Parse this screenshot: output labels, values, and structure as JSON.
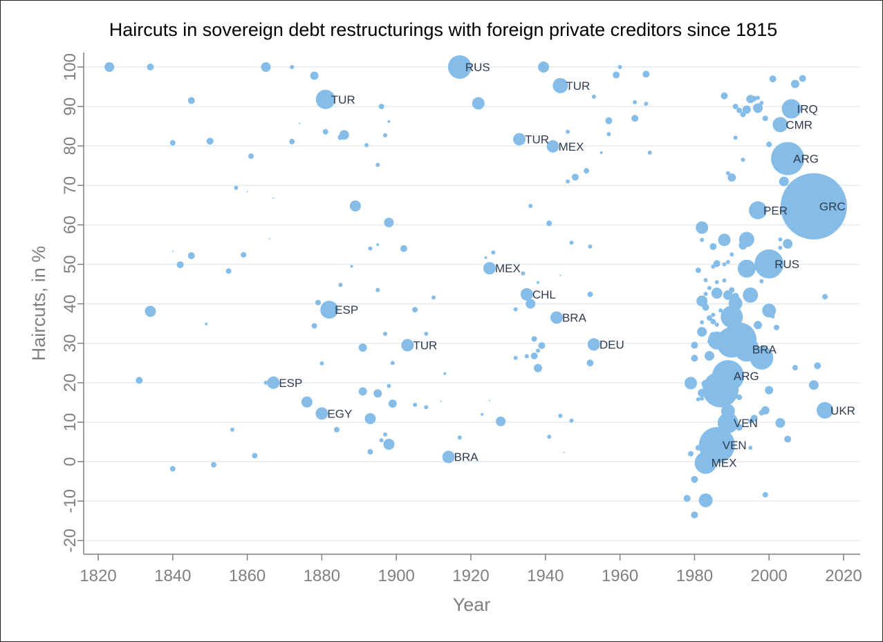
{
  "chart_data": {
    "type": "scatter",
    "title": "Haircuts in sovereign debt restructurings with foreign private creditors since 1815",
    "xlabel": "Year",
    "ylabel": "Haircuts, in %",
    "xlim": [
      1817,
      2022
    ],
    "ylim": [
      -24,
      105
    ],
    "xticks": [
      1820,
      1840,
      1860,
      1880,
      1900,
      1920,
      1940,
      1960,
      1980,
      2000,
      2020
    ],
    "yticks": [
      -20,
      -10,
      0,
      10,
      20,
      30,
      40,
      50,
      60,
      70,
      80,
      90,
      100
    ],
    "grid": true,
    "point_color": "#85bde8",
    "size_encoding": "bubble radius",
    "points": [
      {
        "x": 1823,
        "y": 100,
        "r": 7
      },
      {
        "x": 1834,
        "y": 100,
        "r": 5
      },
      {
        "x": 1865,
        "y": 100,
        "r": 7
      },
      {
        "x": 1872,
        "y": 100,
        "r": 3
      },
      {
        "x": 1878,
        "y": 97.8,
        "r": 6
      },
      {
        "x": 1917,
        "y": 100,
        "r": 17,
        "label": "RUS"
      },
      {
        "x": 1939.5,
        "y": 100,
        "r": 8
      },
      {
        "x": 1960,
        "y": 100,
        "r": 3
      },
      {
        "x": 1959,
        "y": 98,
        "r": 5
      },
      {
        "x": 1967,
        "y": 98.2,
        "r": 5
      },
      {
        "x": 1944,
        "y": 95.3,
        "r": 11,
        "label": "TUR"
      },
      {
        "x": 1953,
        "y": 92.5,
        "r": 3
      },
      {
        "x": 1845,
        "y": 91.5,
        "r": 5
      },
      {
        "x": 1881,
        "y": 91.8,
        "r": 14,
        "label": "TUR"
      },
      {
        "x": 1922,
        "y": 90.8,
        "r": 9
      },
      {
        "x": 1896,
        "y": 90,
        "r": 4
      },
      {
        "x": 1964,
        "y": 91.1,
        "r": 3
      },
      {
        "x": 1967,
        "y": 90.7,
        "r": 3
      },
      {
        "x": 1898,
        "y": 86.2,
        "r": 2
      },
      {
        "x": 1874,
        "y": 85.7,
        "r": 1
      },
      {
        "x": 1957,
        "y": 86.4,
        "r": 5
      },
      {
        "x": 1964,
        "y": 87,
        "r": 5
      },
      {
        "x": 1881,
        "y": 83.6,
        "r": 4
      },
      {
        "x": 1886,
        "y": 82.8,
        "r": 7
      },
      {
        "x": 1885,
        "y": 82.2,
        "r": 4
      },
      {
        "x": 1897,
        "y": 82.7,
        "r": 3
      },
      {
        "x": 1946,
        "y": 83.6,
        "r": 3
      },
      {
        "x": 1957,
        "y": 83,
        "r": 3
      },
      {
        "x": 1840,
        "y": 80.8,
        "r": 4
      },
      {
        "x": 1850,
        "y": 81.2,
        "r": 5
      },
      {
        "x": 1872,
        "y": 81.1,
        "r": 4
      },
      {
        "x": 1892,
        "y": 80.2,
        "r": 3
      },
      {
        "x": 1933,
        "y": 81.7,
        "r": 9,
        "label": "TUR"
      },
      {
        "x": 1942,
        "y": 79.9,
        "r": 9,
        "label": "MEX"
      },
      {
        "x": 1955,
        "y": 78.3,
        "r": 2
      },
      {
        "x": 1968,
        "y": 78.3,
        "r": 3
      },
      {
        "x": 1861,
        "y": 77.4,
        "r": 4
      },
      {
        "x": 1895,
        "y": 75.2,
        "r": 3
      },
      {
        "x": 1951,
        "y": 73.7,
        "r": 4
      },
      {
        "x": 1948,
        "y": 72.1,
        "r": 5
      },
      {
        "x": 1946,
        "y": 71,
        "r": 3
      },
      {
        "x": 1857,
        "y": 69.4,
        "r": 3
      },
      {
        "x": 1860,
        "y": 68.4,
        "r": 1
      },
      {
        "x": 1867,
        "y": 66.8,
        "r": 1
      },
      {
        "x": 1889,
        "y": 64.8,
        "r": 8
      },
      {
        "x": 1936,
        "y": 64.8,
        "r": 3
      },
      {
        "x": 1898,
        "y": 60.6,
        "r": 7
      },
      {
        "x": 1941,
        "y": 60.4,
        "r": 4
      },
      {
        "x": 1866,
        "y": 56.5,
        "r": 1
      },
      {
        "x": 1840,
        "y": 53.3,
        "r": 1
      },
      {
        "x": 1845,
        "y": 52.2,
        "r": 5
      },
      {
        "x": 1859,
        "y": 52.4,
        "r": 4
      },
      {
        "x": 1893,
        "y": 54,
        "r": 3
      },
      {
        "x": 1895,
        "y": 55,
        "r": 2
      },
      {
        "x": 1902,
        "y": 54,
        "r": 5
      },
      {
        "x": 1926,
        "y": 53,
        "r": 3
      },
      {
        "x": 1947,
        "y": 55.5,
        "r": 3
      },
      {
        "x": 1952,
        "y": 54.5,
        "r": 3
      },
      {
        "x": 1924,
        "y": 51.7,
        "r": 2
      },
      {
        "x": 1842,
        "y": 49.9,
        "r": 5
      },
      {
        "x": 1855,
        "y": 48.3,
        "r": 4
      },
      {
        "x": 1888,
        "y": 49.5,
        "r": 2
      },
      {
        "x": 1925,
        "y": 49,
        "r": 9,
        "label": "MEX"
      },
      {
        "x": 1934,
        "y": 47.7,
        "r": 3
      },
      {
        "x": 1944,
        "y": 47.2,
        "r": 1
      },
      {
        "x": 1885,
        "y": 44.8,
        "r": 3
      },
      {
        "x": 1895,
        "y": 43.5,
        "r": 3
      },
      {
        "x": 1938,
        "y": 45.4,
        "r": 2
      },
      {
        "x": 1910,
        "y": 41.6,
        "r": 3
      },
      {
        "x": 1935,
        "y": 42.4,
        "r": 9,
        "label": "CHL"
      },
      {
        "x": 1952,
        "y": 42.4,
        "r": 4
      },
      {
        "x": 1834,
        "y": 38.1,
        "r": 8
      },
      {
        "x": 1879,
        "y": 40.3,
        "r": 4
      },
      {
        "x": 1882,
        "y": 38.5,
        "r": 13,
        "label": "ESP"
      },
      {
        "x": 1905,
        "y": 38.5,
        "r": 4
      },
      {
        "x": 1932,
        "y": 38.6,
        "r": 3
      },
      {
        "x": 1936,
        "y": 40,
        "r": 7
      },
      {
        "x": 1943,
        "y": 36.5,
        "r": 9,
        "label": "BRA"
      },
      {
        "x": 1849,
        "y": 34.9,
        "r": 2
      },
      {
        "x": 1878,
        "y": 34.4,
        "r": 4
      },
      {
        "x": 1897,
        "y": 32.4,
        "r": 3
      },
      {
        "x": 1908,
        "y": 32.4,
        "r": 3
      },
      {
        "x": 1937,
        "y": 31.1,
        "r": 4
      },
      {
        "x": 1891,
        "y": 28.9,
        "r": 6
      },
      {
        "x": 1903,
        "y": 29.5,
        "r": 9,
        "label": "TUR"
      },
      {
        "x": 1939,
        "y": 29.4,
        "r": 5
      },
      {
        "x": 1938,
        "y": 28.1,
        "r": 3
      },
      {
        "x": 1932,
        "y": 26.3,
        "r": 3
      },
      {
        "x": 1935,
        "y": 26.7,
        "r": 3
      },
      {
        "x": 1937,
        "y": 26.8,
        "r": 5
      },
      {
        "x": 1953,
        "y": 29.7,
        "r": 9,
        "label": "DEU"
      },
      {
        "x": 1952,
        "y": 25,
        "r": 5
      },
      {
        "x": 1880,
        "y": 24.9,
        "r": 3
      },
      {
        "x": 1899,
        "y": 25,
        "r": 3
      },
      {
        "x": 1938,
        "y": 23.7,
        "r": 6
      },
      {
        "x": 1913,
        "y": 22.3,
        "r": 2
      },
      {
        "x": 1831,
        "y": 20.6,
        "r": 5
      },
      {
        "x": 1865,
        "y": 20,
        "r": 3
      },
      {
        "x": 1867,
        "y": 20,
        "r": 9,
        "label": "ESP"
      },
      {
        "x": 1898,
        "y": 19.2,
        "r": 3
      },
      {
        "x": 1891,
        "y": 17.8,
        "r": 6
      },
      {
        "x": 1895,
        "y": 17.3,
        "r": 6
      },
      {
        "x": 1876,
        "y": 15.1,
        "r": 8
      },
      {
        "x": 1899,
        "y": 14.7,
        "r": 6
      },
      {
        "x": 1905,
        "y": 14.4,
        "r": 3
      },
      {
        "x": 1908,
        "y": 13.8,
        "r": 3
      },
      {
        "x": 1912,
        "y": 15.3,
        "r": 1
      },
      {
        "x": 1925,
        "y": 15.5,
        "r": 1
      },
      {
        "x": 1880,
        "y": 12.2,
        "r": 9,
        "label": "EGY"
      },
      {
        "x": 1893,
        "y": 10.9,
        "r": 8
      },
      {
        "x": 1923,
        "y": 12,
        "r": 2
      },
      {
        "x": 1928,
        "y": 10.2,
        "r": 7
      },
      {
        "x": 1944,
        "y": 11.6,
        "r": 3
      },
      {
        "x": 1947,
        "y": 10.4,
        "r": 3
      },
      {
        "x": 1856,
        "y": 8.1,
        "r": 3
      },
      {
        "x": 1884,
        "y": 8.1,
        "r": 4
      },
      {
        "x": 1897,
        "y": 6.9,
        "r": 3
      },
      {
        "x": 1941,
        "y": 6.3,
        "r": 3
      },
      {
        "x": 1917,
        "y": 6.1,
        "r": 3
      },
      {
        "x": 1896,
        "y": 5.4,
        "r": 3
      },
      {
        "x": 1898,
        "y": 4.4,
        "r": 8
      },
      {
        "x": 1893,
        "y": 2.5,
        "r": 4
      },
      {
        "x": 1862,
        "y": 1.5,
        "r": 4
      },
      {
        "x": 1914,
        "y": 1.2,
        "r": 9,
        "label": "BRA"
      },
      {
        "x": 1945,
        "y": 2.3,
        "r": 1
      },
      {
        "x": 1851,
        "y": -0.8,
        "r": 4
      },
      {
        "x": 1840,
        "y": -1.8,
        "r": 4
      },
      {
        "x": 1988,
        "y": 92.7,
        "r": 5
      },
      {
        "x": 1991,
        "y": 90,
        "r": 4
      },
      {
        "x": 1992,
        "y": 89,
        "r": 4
      },
      {
        "x": 1993,
        "y": 88,
        "r": 4
      },
      {
        "x": 1994,
        "y": 89.2,
        "r": 6
      },
      {
        "x": 1995,
        "y": 91.9,
        "r": 6
      },
      {
        "x": 1996,
        "y": 92,
        "r": 4
      },
      {
        "x": 1997,
        "y": 92.2,
        "r": 3
      },
      {
        "x": 1997,
        "y": 89.6,
        "r": 7
      },
      {
        "x": 1998,
        "y": 90.9,
        "r": 3
      },
      {
        "x": 1999,
        "y": 87,
        "r": 4
      },
      {
        "x": 2001,
        "y": 97,
        "r": 5
      },
      {
        "x": 2007,
        "y": 95.7,
        "r": 6
      },
      {
        "x": 2009,
        "y": 97.1,
        "r": 5
      },
      {
        "x": 2006,
        "y": 89.4,
        "r": 14,
        "label": "IRQ"
      },
      {
        "x": 2003,
        "y": 85.4,
        "r": 11,
        "label": "CMR"
      },
      {
        "x": 1991,
        "y": 82.1,
        "r": 3
      },
      {
        "x": 2000,
        "y": 80.4,
        "r": 4
      },
      {
        "x": 1993,
        "y": 76.5,
        "r": 3
      },
      {
        "x": 2005,
        "y": 76.8,
        "r": 24,
        "label": "ARG"
      },
      {
        "x": 1989,
        "y": 73.1,
        "r": 3
      },
      {
        "x": 1990,
        "y": 72,
        "r": 6
      },
      {
        "x": 2004,
        "y": 71,
        "r": 7
      },
      {
        "x": 1997,
        "y": 63.7,
        "r": 13,
        "label": "PER"
      },
      {
        "x": 2012,
        "y": 64.7,
        "r": 48,
        "label": "GRC"
      },
      {
        "x": 1982,
        "y": 59.3,
        "r": 9
      },
      {
        "x": 1982,
        "y": 56.2,
        "r": 3
      },
      {
        "x": 1985,
        "y": 54.5,
        "r": 5
      },
      {
        "x": 1988,
        "y": 56.2,
        "r": 9
      },
      {
        "x": 1990,
        "y": 52.5,
        "r": 3
      },
      {
        "x": 1989,
        "y": 50.6,
        "r": 3
      },
      {
        "x": 1993,
        "y": 54.8,
        "r": 6
      },
      {
        "x": 1994,
        "y": 56.3,
        "r": 11
      },
      {
        "x": 2003,
        "y": 56.3,
        "r": 3
      },
      {
        "x": 2003,
        "y": 54.2,
        "r": 3
      },
      {
        "x": 2005,
        "y": 55.2,
        "r": 7
      },
      {
        "x": 1981,
        "y": 48.5,
        "r": 4
      },
      {
        "x": 1985,
        "y": 49.4,
        "r": 3
      },
      {
        "x": 1986,
        "y": 50.2,
        "r": 5
      },
      {
        "x": 1988,
        "y": 50,
        "r": 3
      },
      {
        "x": 1994,
        "y": 48.9,
        "r": 13
      },
      {
        "x": 2000,
        "y": 50.1,
        "r": 21,
        "label": "RUS"
      },
      {
        "x": 1998,
        "y": 45.7,
        "r": 3
      },
      {
        "x": 1983,
        "y": 46,
        "r": 3
      },
      {
        "x": 1986,
        "y": 45.5,
        "r": 3
      },
      {
        "x": 1988,
        "y": 45.9,
        "r": 3
      },
      {
        "x": 1984,
        "y": 44,
        "r": 3
      },
      {
        "x": 1990,
        "y": 43.5,
        "r": 4
      },
      {
        "x": 1983,
        "y": 42.5,
        "r": 3
      },
      {
        "x": 1986,
        "y": 42.7,
        "r": 8
      },
      {
        "x": 1989,
        "y": 42.2,
        "r": 7
      },
      {
        "x": 1991,
        "y": 41.9,
        "r": 5
      },
      {
        "x": 1982,
        "y": 40.7,
        "r": 8
      },
      {
        "x": 1983,
        "y": 39.1,
        "r": 5
      },
      {
        "x": 1991,
        "y": 40.1,
        "r": 10
      },
      {
        "x": 1995,
        "y": 42.2,
        "r": 11
      },
      {
        "x": 2015,
        "y": 41.8,
        "r": 4
      },
      {
        "x": 1987,
        "y": 38.3,
        "r": 3
      },
      {
        "x": 1989,
        "y": 37.6,
        "r": 4
      },
      {
        "x": 1985,
        "y": 37.2,
        "r": 3
      },
      {
        "x": 1984,
        "y": 36.4,
        "r": 4
      },
      {
        "x": 1990,
        "y": 36.7,
        "r": 16
      },
      {
        "x": 2000,
        "y": 38.3,
        "r": 10
      },
      {
        "x": 2001,
        "y": 36.8,
        "r": 3
      },
      {
        "x": 1982,
        "y": 35.3,
        "r": 3
      },
      {
        "x": 1985,
        "y": 35.5,
        "r": 4
      },
      {
        "x": 1986,
        "y": 34.7,
        "r": 3
      },
      {
        "x": 1997,
        "y": 34.6,
        "r": 6
      },
      {
        "x": 2002,
        "y": 34,
        "r": 4
      },
      {
        "x": 1982,
        "y": 32.9,
        "r": 7
      },
      {
        "x": 1985,
        "y": 32,
        "r": 5
      },
      {
        "x": 1984,
        "y": 30.5,
        "r": 3
      },
      {
        "x": 1986,
        "y": 30.7,
        "r": 13
      },
      {
        "x": 1990,
        "y": 30.2,
        "r": 22
      },
      {
        "x": 1992,
        "y": 30.9,
        "r": 25
      },
      {
        "x": 1994,
        "y": 28.5,
        "r": 18,
        "label": "BRA"
      },
      {
        "x": 1998,
        "y": 26.3,
        "r": 17
      },
      {
        "x": 1980,
        "y": 29.5,
        "r": 5
      },
      {
        "x": 1980,
        "y": 26.2,
        "r": 5
      },
      {
        "x": 1984,
        "y": 26.8,
        "r": 7
      },
      {
        "x": 2007,
        "y": 23.8,
        "r": 4
      },
      {
        "x": 2013,
        "y": 24.3,
        "r": 5
      },
      {
        "x": 1989,
        "y": 21.7,
        "r": 23,
        "label": "ARG"
      },
      {
        "x": 1979,
        "y": 19.9,
        "r": 9
      },
      {
        "x": 1987,
        "y": 18.3,
        "r": 26
      },
      {
        "x": 1983,
        "y": 19.7,
        "r": 6
      },
      {
        "x": 1982,
        "y": 17.4,
        "r": 6
      },
      {
        "x": 1981,
        "y": 15.8,
        "r": 3
      },
      {
        "x": 1982,
        "y": 16,
        "r": 3
      },
      {
        "x": 1992,
        "y": 16.3,
        "r": 4
      },
      {
        "x": 2000,
        "y": 18.1,
        "r": 6
      },
      {
        "x": 2012,
        "y": 19.4,
        "r": 7
      },
      {
        "x": 1989,
        "y": 12.8,
        "r": 10
      },
      {
        "x": 1989,
        "y": 9.8,
        "r": 15,
        "label": "VEN"
      },
      {
        "x": 1992,
        "y": 8.7,
        "r": 5
      },
      {
        "x": 1995,
        "y": 10.2,
        "r": 3
      },
      {
        "x": 1996,
        "y": 11,
        "r": 5
      },
      {
        "x": 1998,
        "y": 12.4,
        "r": 4
      },
      {
        "x": 1999,
        "y": 13,
        "r": 6
      },
      {
        "x": 2003,
        "y": 9.8,
        "r": 7
      },
      {
        "x": 2005,
        "y": 5.7,
        "r": 5
      },
      {
        "x": 2015,
        "y": 13,
        "r": 12,
        "label": "UKR"
      },
      {
        "x": 1986,
        "y": 4.2,
        "r": 26,
        "label": "VEN"
      },
      {
        "x": 1983,
        "y": -0.3,
        "r": 16,
        "label": "MEX"
      },
      {
        "x": 1981,
        "y": 3.5,
        "r": 4
      },
      {
        "x": 1979,
        "y": 2,
        "r": 4
      },
      {
        "x": 1980,
        "y": -4.5,
        "r": 5
      },
      {
        "x": 1995,
        "y": 3.5,
        "r": 3
      },
      {
        "x": 1983,
        "y": -9.8,
        "r": 10
      },
      {
        "x": 1978,
        "y": -9.3,
        "r": 5
      },
      {
        "x": 1980,
        "y": -13.5,
        "r": 5
      },
      {
        "x": 1999,
        "y": -8.4,
        "r": 4
      }
    ]
  }
}
